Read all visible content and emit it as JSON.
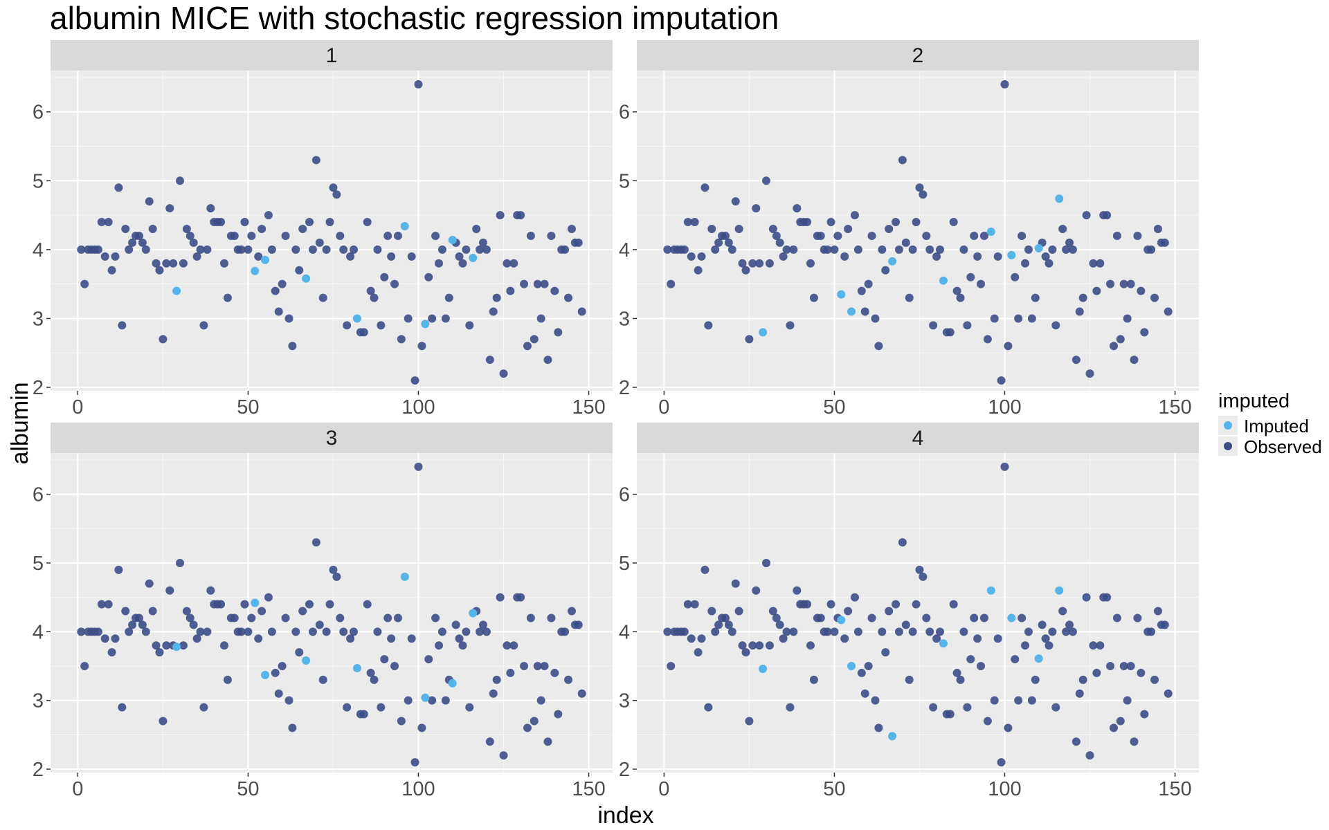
{
  "chart_data": {
    "type": "scatter",
    "title": "albumin MICE with stochastic regression imputation",
    "xlabel": "index",
    "ylabel": "albumin",
    "xlim": [
      -8,
      157
    ],
    "ylim": [
      1.95,
      6.6
    ],
    "x_ticks": [
      0,
      50,
      100,
      150
    ],
    "y_ticks": [
      2,
      3,
      4,
      5,
      6
    ],
    "grid": true,
    "legend": {
      "title": "imputed",
      "placement": "right",
      "entries": [
        {
          "label": "Imputed",
          "color": "#56B4E9"
        },
        {
          "label": "Observed",
          "color": "#3D4E87"
        }
      ]
    },
    "colors": {
      "imputed": "#56B4E9",
      "observed": "#3D4E87",
      "panel_bg": "#EBEBEB",
      "strip_bg": "#D9D9D9",
      "grid": "#FFFFFF"
    },
    "observed": [
      [
        1,
        4.0
      ],
      [
        2,
        3.5
      ],
      [
        3,
        4.0
      ],
      [
        4,
        4.0
      ],
      [
        5,
        4.0
      ],
      [
        6,
        4.0
      ],
      [
        7,
        4.4
      ],
      [
        8,
        3.9
      ],
      [
        9,
        4.4
      ],
      [
        10,
        3.7
      ],
      [
        11,
        3.9
      ],
      [
        12,
        4.9
      ],
      [
        13,
        2.9
      ],
      [
        14,
        4.3
      ],
      [
        15,
        4.0
      ],
      [
        16,
        4.1
      ],
      [
        17,
        4.2
      ],
      [
        18,
        4.2
      ],
      [
        19,
        4.1
      ],
      [
        20,
        4.0
      ],
      [
        21,
        4.7
      ],
      [
        22,
        4.3
      ],
      [
        23,
        3.8
      ],
      [
        24,
        3.7
      ],
      [
        25,
        2.7
      ],
      [
        26,
        3.8
      ],
      [
        27,
        4.6
      ],
      [
        28,
        3.8
      ],
      [
        30,
        5.0
      ],
      [
        31,
        3.8
      ],
      [
        32,
        4.3
      ],
      [
        33,
        4.2
      ],
      [
        34,
        4.1
      ],
      [
        35,
        3.9
      ],
      [
        36,
        4.0
      ],
      [
        37,
        2.9
      ],
      [
        38,
        4.0
      ],
      [
        39,
        4.6
      ],
      [
        40,
        4.4
      ],
      [
        41,
        4.4
      ],
      [
        42,
        4.4
      ],
      [
        43,
        3.8
      ],
      [
        44,
        3.3
      ],
      [
        45,
        4.2
      ],
      [
        46,
        4.2
      ],
      [
        47,
        4.0
      ],
      [
        48,
        4.0
      ],
      [
        49,
        4.4
      ],
      [
        50,
        4.0
      ],
      [
        51,
        4.2
      ],
      [
        53,
        3.9
      ],
      [
        54,
        4.3
      ],
      [
        56,
        4.5
      ],
      [
        57,
        4.0
      ],
      [
        58,
        3.4
      ],
      [
        59,
        3.1
      ],
      [
        60,
        3.5
      ],
      [
        61,
        4.2
      ],
      [
        62,
        3.0
      ],
      [
        63,
        2.6
      ],
      [
        64,
        4.0
      ],
      [
        65,
        3.7
      ],
      [
        66,
        4.3
      ],
      [
        68,
        4.4
      ],
      [
        69,
        4.0
      ],
      [
        70,
        5.3
      ],
      [
        71,
        4.1
      ],
      [
        72,
        3.3
      ],
      [
        73,
        4.0
      ],
      [
        74,
        4.4
      ],
      [
        75,
        4.9
      ],
      [
        76,
        4.8
      ],
      [
        77,
        4.2
      ],
      [
        78,
        4.0
      ],
      [
        79,
        2.9
      ],
      [
        80,
        3.9
      ],
      [
        81,
        4.0
      ],
      [
        83,
        2.8
      ],
      [
        84,
        2.8
      ],
      [
        85,
        4.4
      ],
      [
        86,
        3.4
      ],
      [
        87,
        3.3
      ],
      [
        88,
        4.0
      ],
      [
        89,
        2.9
      ],
      [
        90,
        3.6
      ],
      [
        91,
        4.2
      ],
      [
        92,
        3.9
      ],
      [
        93,
        3.5
      ],
      [
        94,
        4.2
      ],
      [
        95,
        2.7
      ],
      [
        97,
        3.0
      ],
      [
        98,
        3.9
      ],
      [
        99,
        2.1
      ],
      [
        100,
        6.4
      ],
      [
        101,
        2.6
      ],
      [
        103,
        3.6
      ],
      [
        104,
        3.0
      ],
      [
        105,
        4.2
      ],
      [
        106,
        3.8
      ],
      [
        107,
        4.0
      ],
      [
        108,
        3.0
      ],
      [
        109,
        3.3
      ],
      [
        111,
        4.1
      ],
      [
        112,
        3.9
      ],
      [
        113,
        3.8
      ],
      [
        114,
        4.0
      ],
      [
        115,
        2.9
      ],
      [
        117,
        4.3
      ],
      [
        118,
        4.0
      ],
      [
        119,
        4.1
      ],
      [
        120,
        4.0
      ],
      [
        121,
        2.4
      ],
      [
        122,
        3.1
      ],
      [
        123,
        3.3
      ],
      [
        124,
        4.5
      ],
      [
        125,
        2.2
      ],
      [
        126,
        3.8
      ],
      [
        127,
        3.4
      ],
      [
        128,
        3.8
      ],
      [
        129,
        4.5
      ],
      [
        130,
        4.5
      ],
      [
        131,
        3.5
      ],
      [
        132,
        2.6
      ],
      [
        133,
        4.2
      ],
      [
        134,
        2.7
      ],
      [
        135,
        3.5
      ],
      [
        136,
        3.0
      ],
      [
        137,
        3.5
      ],
      [
        138,
        2.4
      ],
      [
        139,
        4.2
      ],
      [
        140,
        3.4
      ],
      [
        141,
        2.8
      ],
      [
        142,
        4.0
      ],
      [
        143,
        4.0
      ],
      [
        144,
        3.3
      ],
      [
        145,
        4.3
      ],
      [
        146,
        4.1
      ],
      [
        147,
        4.1
      ],
      [
        148,
        3.1
      ]
    ],
    "panels": [
      {
        "label": "1",
        "imputed": [
          [
            29,
            3.4
          ],
          [
            52,
            3.69
          ],
          [
            55,
            3.85
          ],
          [
            67,
            3.58
          ],
          [
            82,
            3.0
          ],
          [
            96,
            4.34
          ],
          [
            102,
            2.92
          ],
          [
            110,
            4.14
          ],
          [
            116,
            3.88
          ]
        ]
      },
      {
        "label": "2",
        "imputed": [
          [
            29,
            2.8
          ],
          [
            52,
            3.35
          ],
          [
            55,
            3.1
          ],
          [
            67,
            3.83
          ],
          [
            82,
            3.55
          ],
          [
            96,
            4.26
          ],
          [
            102,
            3.92
          ],
          [
            110,
            4.02
          ],
          [
            116,
            4.74
          ]
        ]
      },
      {
        "label": "3",
        "imputed": [
          [
            29,
            3.78
          ],
          [
            52,
            4.42
          ],
          [
            55,
            3.37
          ],
          [
            67,
            3.58
          ],
          [
            82,
            3.47
          ],
          [
            96,
            4.8
          ],
          [
            102,
            3.04
          ],
          [
            110,
            3.25
          ],
          [
            116,
            4.27
          ]
        ]
      },
      {
        "label": "4",
        "imputed": [
          [
            29,
            3.46
          ],
          [
            52,
            4.17
          ],
          [
            55,
            3.5
          ],
          [
            67,
            2.48
          ],
          [
            82,
            3.83
          ],
          [
            96,
            4.6
          ],
          [
            102,
            4.2
          ],
          [
            110,
            3.61
          ],
          [
            116,
            4.6
          ]
        ]
      }
    ]
  }
}
